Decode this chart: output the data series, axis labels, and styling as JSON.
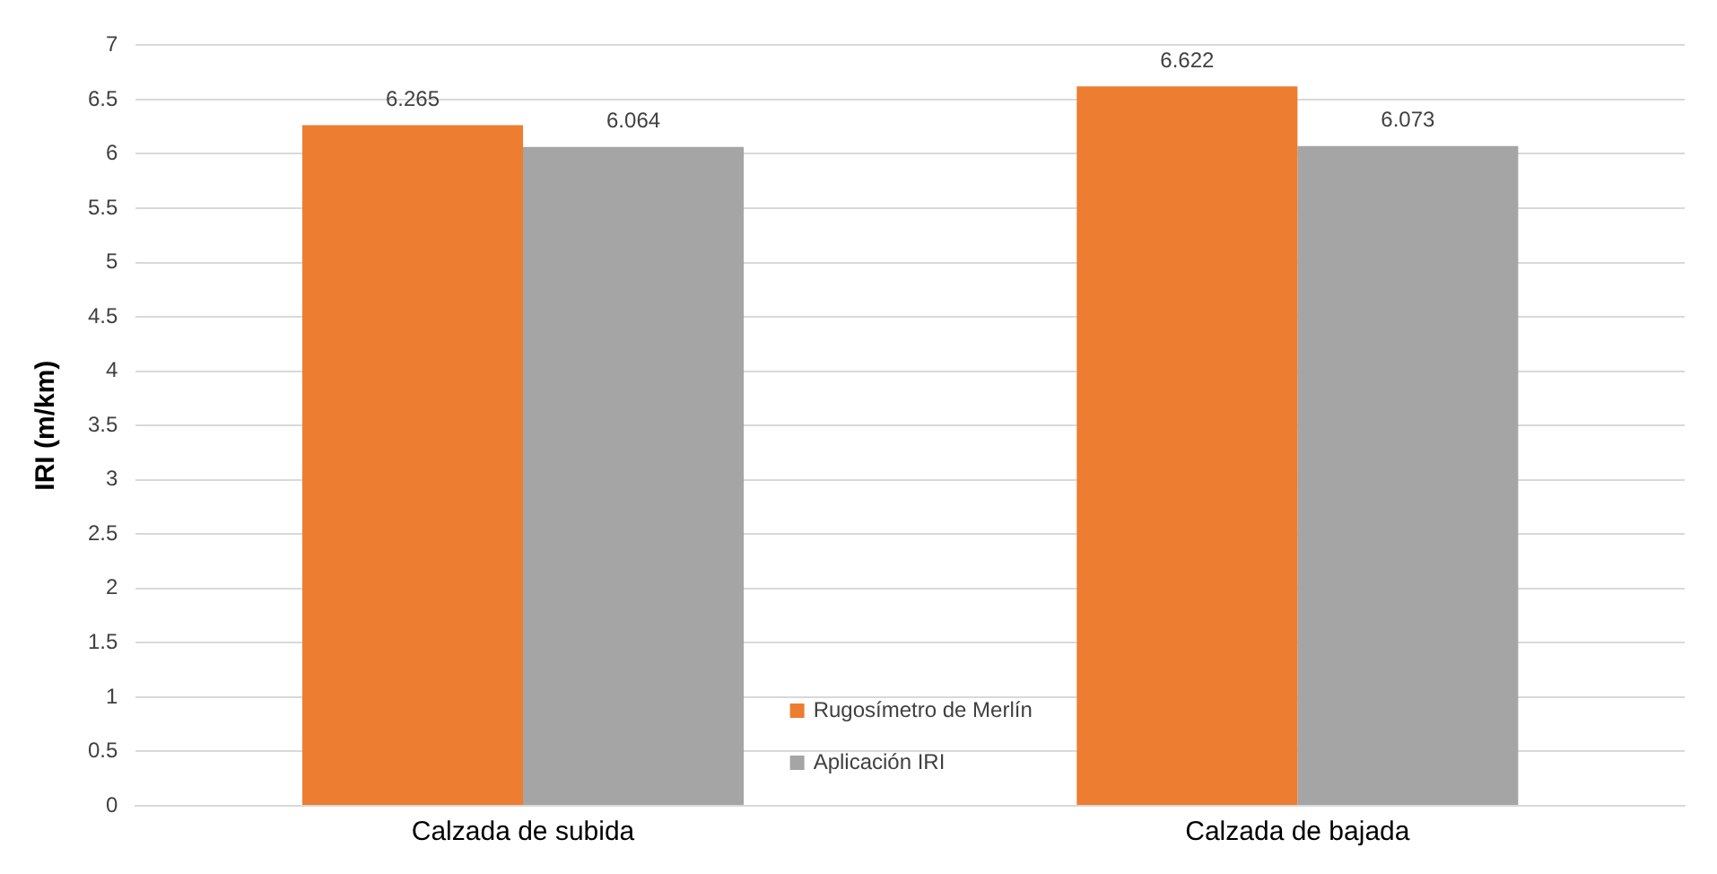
{
  "chart_data": {
    "type": "bar",
    "ylabel": "IRI (m/km)",
    "categories": [
      "Calzada de subida",
      "Calzada de bajada"
    ],
    "series": [
      {
        "name": "Rugosímetro de Merlín",
        "color": "#ed7d31",
        "values": [
          6.265,
          6.622
        ]
      },
      {
        "name": "Aplicación IRI",
        "color": "#a5a5a5",
        "values": [
          6.064,
          6.073
        ]
      }
    ],
    "ylim": [
      0,
      7
    ],
    "yticks": [
      0,
      0.5,
      1,
      1.5,
      2,
      2.5,
      3,
      3.5,
      4,
      4.5,
      5,
      5.5,
      6,
      6.5,
      7
    ],
    "grid": "y",
    "legend": "bottom",
    "data_labels": true
  }
}
